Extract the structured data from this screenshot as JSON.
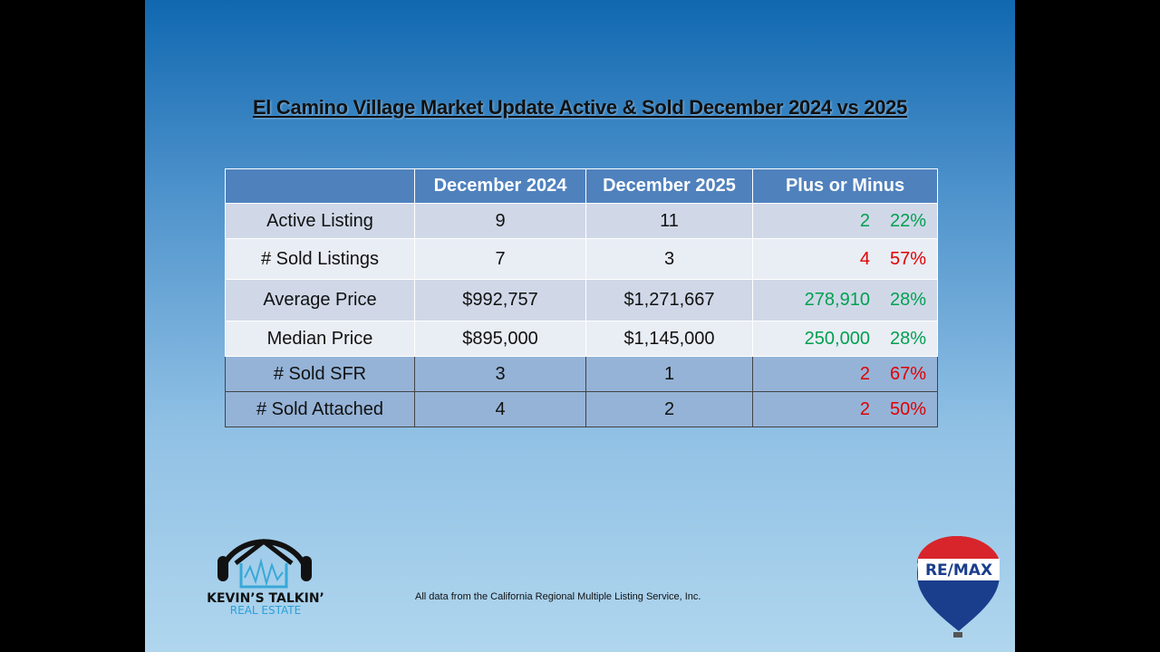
{
  "title": "El Camino Village Market Update Active & Sold December 2024 vs 2025",
  "table": {
    "header": [
      "",
      "December 2024",
      "December 2025",
      "Plus or Minus"
    ],
    "rows": [
      {
        "label": "Active Listing",
        "y2024": "9",
        "y2025": "11",
        "change": "2",
        "pct": "22%",
        "color": "#00a050"
      },
      {
        "label": "# Sold Listings",
        "y2024": "7",
        "y2025": "3",
        "change": "4",
        "pct": "57%",
        "color": "#e00000"
      },
      {
        "label": "Average Price",
        "y2024": "$992,757",
        "y2025": "$1,271,667",
        "change": "278,910",
        "pct": "28%",
        "color": "#00a050"
      },
      {
        "label": "Median Price",
        "y2024": "$895,000",
        "y2025": "$1,145,000",
        "change": "250,000",
        "pct": "28%",
        "color": "#00a050"
      },
      {
        "label": "# Sold SFR",
        "y2024": "3",
        "y2025": "1",
        "change": "2",
        "pct": "67%",
        "color": "#e00000"
      },
      {
        "label": "# Sold Attached",
        "y2024": "4",
        "y2025": "2",
        "change": "2",
        "pct": "50%",
        "color": "#e00000"
      }
    ]
  },
  "footnote": "All data from the California Regional Multiple Listing Service, Inc.",
  "logo": {
    "name": "KEVIN’S TALKIN’",
    "sub": "REAL ESTATE"
  },
  "remax": "RE/MAX"
}
